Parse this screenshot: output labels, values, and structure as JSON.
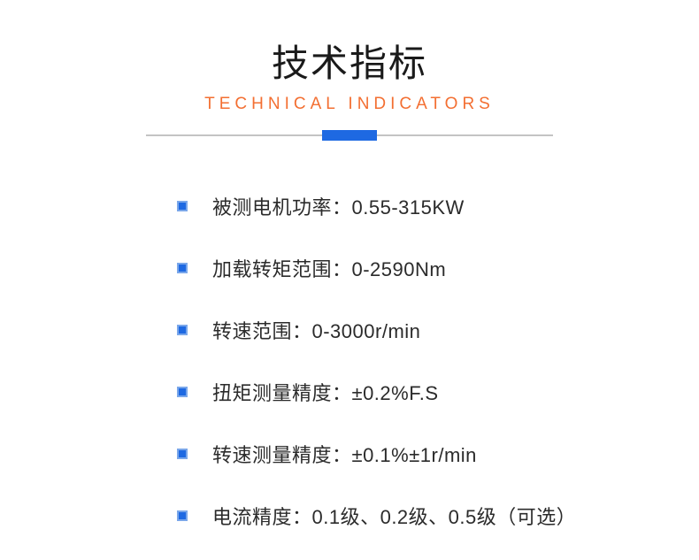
{
  "header": {
    "title_main": "技术指标",
    "title_main_fontsize": 42,
    "title_main_color": "#1a1a1a",
    "title_sub": "TECHNICAL INDICATORS",
    "title_sub_fontsize": 19,
    "title_sub_color": "#f36f32",
    "title_sub_letter_spacing": 5
  },
  "divider": {
    "line_color": "#888888",
    "block_color": "#1e69e2",
    "block_width": 62,
    "block_height": 12
  },
  "bullet": {
    "fill": "#1e69e2",
    "border": "#7aa7ea"
  },
  "specs": {
    "font_size": 22,
    "color": "#2b2b2b",
    "items": [
      {
        "text": "被测电机功率：0.55-315KW"
      },
      {
        "text": "加载转矩范围：0-2590Nm"
      },
      {
        "text": "转速范围：0-3000r/min"
      },
      {
        "text": "扭矩测量精度：±0.2%F.S"
      },
      {
        "text": "转速测量精度：±0.1%±1r/min"
      },
      {
        "text": "电流精度：0.1级、0.2级、0.5级（可选）"
      }
    ]
  }
}
